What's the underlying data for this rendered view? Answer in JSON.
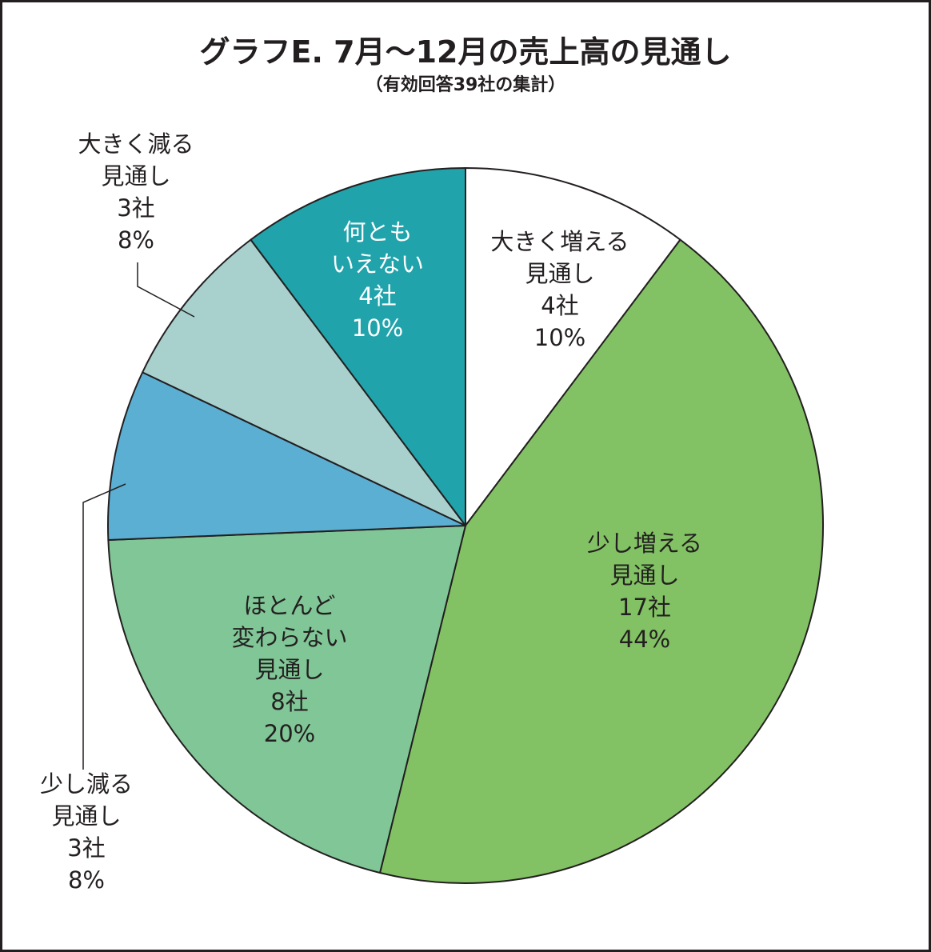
{
  "chart_data": {
    "type": "pie",
    "title": "グラフE. 7月～12月の売上高の見通し",
    "subtitle": "（有効回答39社の集計）",
    "slices": [
      {
        "label": [
          "大きく増える",
          "見通し"
        ],
        "count": "4社",
        "percent": "10%",
        "value": 4,
        "color": "#ffffff"
      },
      {
        "label": [
          "少し増える",
          "見通し"
        ],
        "count": "17社",
        "percent": "44%",
        "value": 17,
        "color": "#82c264"
      },
      {
        "label": [
          "ほとんど",
          "変わらない",
          "見通し"
        ],
        "count": "8社",
        "percent": "20%",
        "value": 8,
        "color": "#80c696"
      },
      {
        "label": [
          "少し減る",
          "見通し"
        ],
        "count": "3社",
        "percent": "8%",
        "value": 3,
        "color": "#5bafd3"
      },
      {
        "label": [
          "大きく減る",
          "見通し"
        ],
        "count": "3社",
        "percent": "8%",
        "value": 3,
        "color": "#a8d1cd"
      },
      {
        "label": [
          "何とも",
          "いえない"
        ],
        "count": "4社",
        "percent": "10%",
        "value": 4,
        "color": "#20a3ab"
      }
    ]
  }
}
